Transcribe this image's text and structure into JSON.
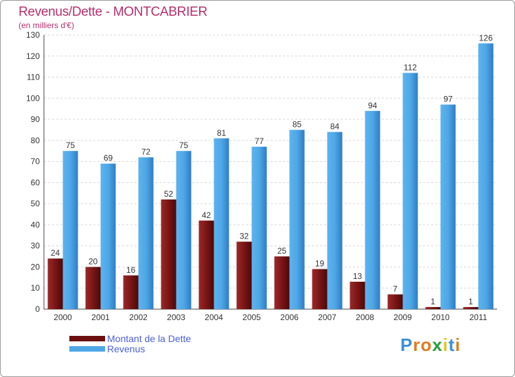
{
  "header": {
    "title": "Revenus/Dette - MONTCABRIER",
    "subtitle": "(en milliers d'€)"
  },
  "chart_data": {
    "type": "bar",
    "categories": [
      "2000",
      "2001",
      "2002",
      "2003",
      "2004",
      "2005",
      "2006",
      "2007",
      "2008",
      "2009",
      "2010",
      "2011"
    ],
    "series": [
      {
        "name": "Montant de la Dette",
        "color": "#7a1515",
        "values": [
          24,
          20,
          16,
          52,
          42,
          32,
          25,
          19,
          13,
          7,
          1,
          1
        ]
      },
      {
        "name": "Revenus",
        "color": "#4fa7e6",
        "values": [
          75,
          69,
          72,
          75,
          81,
          77,
          85,
          84,
          94,
          112,
          97,
          126
        ]
      }
    ],
    "yticks": [
      "0",
      "10",
      "20",
      "30",
      "40",
      "50",
      "60",
      "70",
      "80",
      "90",
      "100",
      "110",
      "120",
      "130"
    ],
    "ylim": [
      0,
      130
    ],
    "grid": true,
    "legend_position": "bottom-left"
  },
  "legend": {
    "items": [
      {
        "label": "Montant de la Dette",
        "color": "#6b0f0f"
      },
      {
        "label": "Revenus",
        "color": "#4fa7e6"
      }
    ]
  },
  "brand": {
    "letters": [
      {
        "ch": "P",
        "color": "#3d8fd6"
      },
      {
        "ch": "r",
        "color": "#e07b1f"
      },
      {
        "ch": "o",
        "color": "#e07b1f"
      },
      {
        "ch": "x",
        "color": "#2a9d3a"
      },
      {
        "ch": "i",
        "color": "#e6c21f"
      },
      {
        "ch": "t",
        "color": "#3d8fd6"
      },
      {
        "ch": "i",
        "color": "#e07b1f"
      }
    ]
  }
}
